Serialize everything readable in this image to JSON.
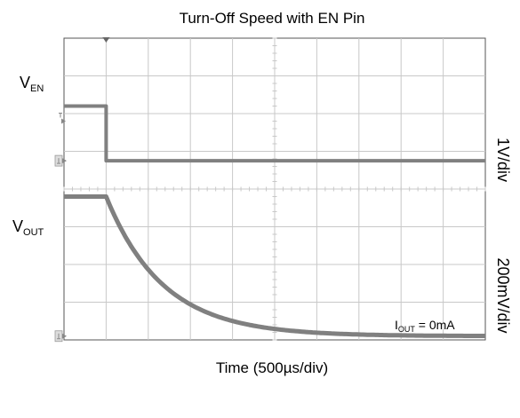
{
  "chart_data": {
    "type": "line",
    "title": "Turn-Off Speed with EN Pin",
    "xlabel": "Time (500µs/div)",
    "x_divisions": 10,
    "y_divisions": 8,
    "x_range_divs": [
      0,
      10
    ],
    "y_range_divs": [
      0,
      8
    ],
    "grid": true,
    "trace_color": "#808080",
    "grid_color": "#c8c8c8",
    "frame_color": "#555555",
    "series": [
      {
        "name": "VEN",
        "label_main": "V",
        "label_sub": "EN",
        "scale_label": "1V/div",
        "points_divs": [
          [
            0,
            6.2
          ],
          [
            1.0,
            6.2
          ],
          [
            1.0,
            4.75
          ],
          [
            10,
            4.75
          ]
        ],
        "ground_ref_div": 4.75
      },
      {
        "name": "VOUT",
        "label_main": "V",
        "label_sub": "OUT",
        "scale_label": "200mV/div",
        "initial_level_div": 3.8,
        "final_level_div": 0.1,
        "decay_start_div": 1.0,
        "decay_tau_div": 1.35,
        "ground_ref_div": 0.1
      }
    ],
    "annotation": {
      "main": "I",
      "sub": "OUT",
      "rest": " = 0mA"
    },
    "trigger_marker_div": 1.0,
    "trigger_level_div": 5.8
  }
}
